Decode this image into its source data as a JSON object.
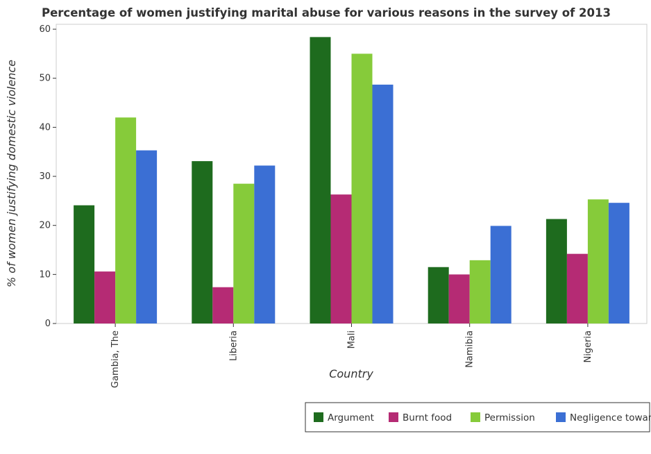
{
  "chart_data": {
    "type": "bar",
    "title": "Percentage of women justifying marital abuse for various reasons in the survey of 2013",
    "xlabel": "Country",
    "ylabel": "% of women justifying domestic violence",
    "categories": [
      "Gambia, The",
      "Liberia",
      "Mali",
      "Namibia",
      "Nigeria"
    ],
    "series": [
      {
        "name": "Argument",
        "color": "#1e6b1e",
        "values": [
          24.1,
          33.1,
          58.4,
          11.5,
          21.3
        ]
      },
      {
        "name": "Burnt food",
        "color": "#b52b74",
        "values": [
          10.6,
          7.4,
          26.3,
          10.0,
          14.2
        ]
      },
      {
        "name": "Permission",
        "color": "#86cb3a",
        "values": [
          42.0,
          28.5,
          55.0,
          12.9,
          25.3
        ]
      },
      {
        "name": "Negligence towards children",
        "color": "#3b6fd4",
        "values": [
          35.3,
          32.2,
          48.7,
          19.9,
          24.6
        ]
      }
    ],
    "ylim": [
      0,
      61
    ],
    "yticks": [
      0,
      10,
      20,
      30,
      40,
      50,
      60
    ],
    "grid": false,
    "legend_position": "bottom-right"
  }
}
